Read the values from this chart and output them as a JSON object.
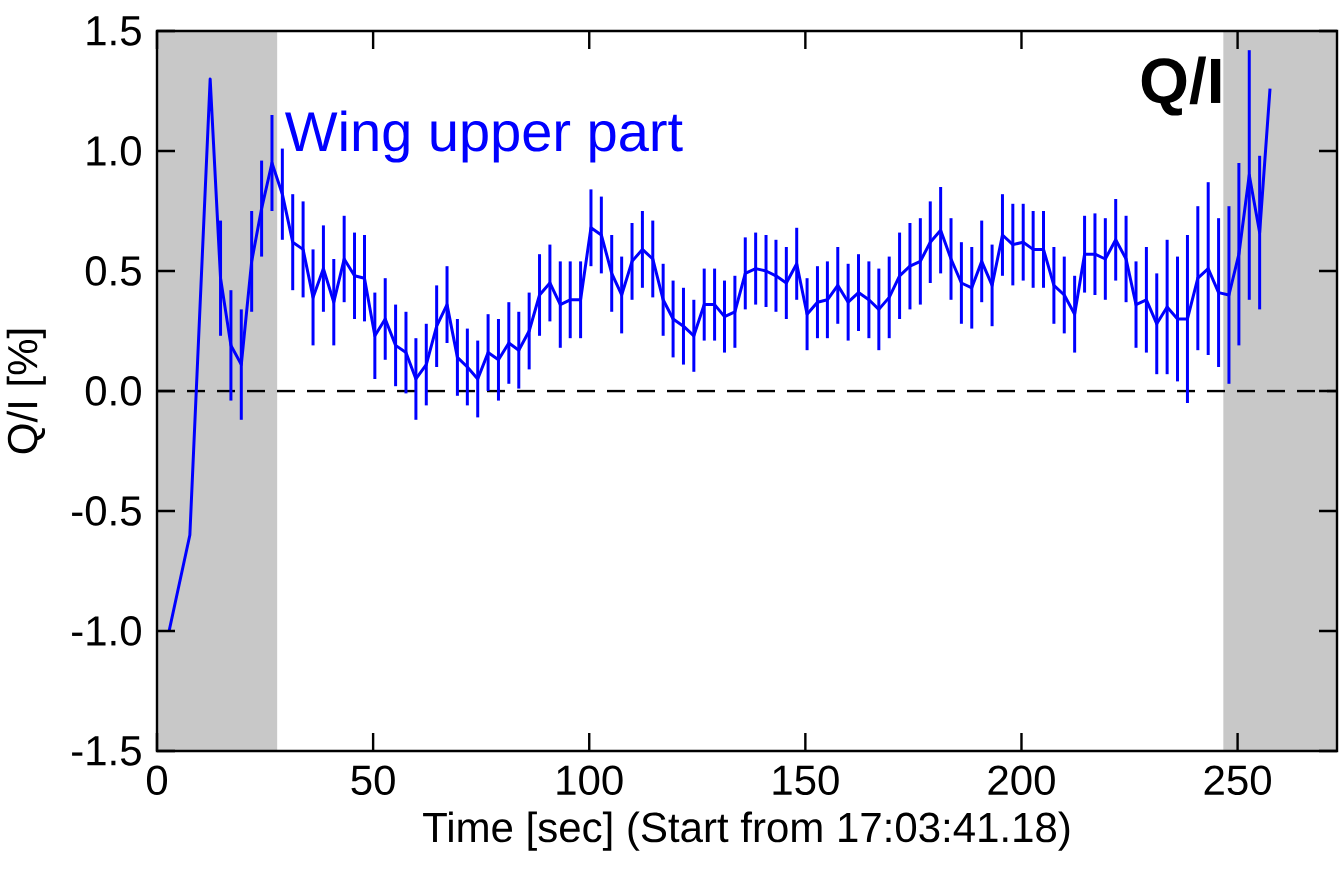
{
  "chart_data": {
    "type": "line",
    "xlabel": "Time [sec] (Start from 17:03:41.18)",
    "ylabel": "Q/I [%]",
    "annotations": [
      "Q/I"
    ],
    "xlim": [
      0,
      273
    ],
    "ylim": [
      -1.5,
      1.5
    ],
    "xticks": [
      0,
      50,
      100,
      150,
      200,
      250
    ],
    "yticks": [
      {
        "value": -1.5,
        "label": "-1.5"
      },
      {
        "value": -1.0,
        "label": "-1.0"
      },
      {
        "value": -0.5,
        "label": "-0.5"
      },
      {
        "value": 0.0,
        "label": "0.0"
      },
      {
        "value": 0.5,
        "label": "0.5"
      },
      {
        "value": 1.0,
        "label": "1.0"
      },
      {
        "value": 1.5,
        "label": "1.5"
      }
    ],
    "bands": [
      {
        "axis": "x",
        "from": 0,
        "to": 27.8,
        "color": "#c8c8c8"
      },
      {
        "axis": "x",
        "from": 246.7,
        "to": 273,
        "color": "#c8c8c8"
      }
    ],
    "ref_lines": [
      {
        "axis": "y",
        "value": 0,
        "color": "#000000",
        "line_style": "dashed"
      }
    ],
    "series": [
      {
        "name": "Wing upper part",
        "color": "#0000ff",
        "marker": "none",
        "line_style": "solid",
        "x": [
          2.8,
          7.6,
          12.3,
          14.7,
          17.1,
          19.5,
          21.9,
          24.2,
          26.6,
          29.0,
          31.4,
          33.8,
          36.1,
          38.5,
          40.9,
          43.3,
          45.7,
          48.0,
          50.4,
          52.8,
          55.2,
          57.6,
          59.9,
          62.3,
          64.7,
          67.1,
          69.5,
          71.8,
          74.2,
          76.6,
          79.0,
          81.4,
          83.7,
          86.1,
          88.5,
          90.9,
          93.3,
          95.6,
          98.0,
          100.4,
          102.8,
          105.2,
          107.5,
          109.9,
          112.3,
          114.7,
          117.1,
          119.4,
          121.8,
          124.2,
          126.6,
          129.0,
          131.3,
          133.7,
          136.1,
          138.5,
          140.9,
          143.2,
          145.6,
          148.0,
          150.4,
          152.8,
          155.1,
          157.5,
          159.9,
          162.3,
          164.7,
          167.0,
          169.4,
          171.8,
          174.2,
          176.6,
          178.9,
          181.3,
          183.7,
          186.1,
          188.5,
          190.8,
          193.2,
          195.6,
          198.0,
          200.4,
          202.7,
          205.1,
          207.5,
          209.9,
          212.3,
          214.6,
          217.0,
          219.4,
          221.8,
          224.2,
          226.5,
          228.9,
          231.3,
          233.7,
          236.1,
          238.4,
          240.8,
          243.2,
          245.6,
          248.0,
          250.3,
          252.7,
          255.1,
          257.5
        ],
        "values": [
          -1.0,
          -0.6,
          1.3,
          0.47,
          0.19,
          0.11,
          0.54,
          0.76,
          0.95,
          0.82,
          0.62,
          0.59,
          0.39,
          0.51,
          0.37,
          0.55,
          0.48,
          0.47,
          0.23,
          0.3,
          0.19,
          0.16,
          0.05,
          0.11,
          0.27,
          0.36,
          0.14,
          0.1,
          0.05,
          0.16,
          0.13,
          0.2,
          0.17,
          0.25,
          0.4,
          0.45,
          0.36,
          0.38,
          0.38,
          0.68,
          0.65,
          0.49,
          0.4,
          0.54,
          0.59,
          0.55,
          0.38,
          0.3,
          0.27,
          0.23,
          0.36,
          0.36,
          0.31,
          0.33,
          0.49,
          0.51,
          0.5,
          0.48,
          0.45,
          0.53,
          0.32,
          0.37,
          0.38,
          0.44,
          0.37,
          0.41,
          0.38,
          0.34,
          0.39,
          0.48,
          0.52,
          0.54,
          0.62,
          0.67,
          0.55,
          0.45,
          0.43,
          0.54,
          0.44,
          0.65,
          0.61,
          0.62,
          0.59,
          0.59,
          0.44,
          0.4,
          0.32,
          0.57,
          0.57,
          0.55,
          0.63,
          0.55,
          0.36,
          0.38,
          0.28,
          0.35,
          0.3,
          0.3,
          0.47,
          0.51,
          0.41,
          0.4,
          0.57,
          0.9,
          0.66,
          1.26
        ],
        "errors": [
          null,
          null,
          null,
          0.24,
          0.23,
          0.23,
          0.21,
          0.2,
          0.2,
          0.19,
          0.2,
          0.2,
          0.2,
          0.18,
          0.18,
          0.18,
          0.18,
          0.18,
          0.18,
          0.17,
          0.17,
          0.17,
          0.17,
          0.17,
          0.17,
          0.16,
          0.16,
          0.16,
          0.16,
          0.16,
          0.17,
          0.17,
          0.16,
          0.16,
          0.17,
          0.16,
          0.18,
          0.16,
          0.16,
          0.16,
          0.16,
          0.16,
          0.16,
          0.16,
          0.16,
          0.16,
          0.15,
          0.16,
          0.16,
          0.15,
          0.15,
          0.15,
          0.15,
          0.15,
          0.15,
          0.15,
          0.15,
          0.15,
          0.15,
          0.15,
          0.15,
          0.15,
          0.16,
          0.16,
          0.16,
          0.16,
          0.16,
          0.17,
          0.17,
          0.18,
          0.18,
          0.18,
          0.17,
          0.18,
          0.17,
          0.17,
          0.17,
          0.17,
          0.17,
          0.17,
          0.17,
          0.16,
          0.16,
          0.16,
          0.16,
          0.16,
          0.16,
          0.16,
          0.17,
          0.17,
          0.17,
          0.18,
          0.18,
          0.22,
          0.21,
          0.28,
          0.26,
          0.35,
          0.3,
          0.36,
          0.31,
          0.37,
          0.38,
          0.52,
          0.32,
          null
        ]
      }
    ]
  }
}
